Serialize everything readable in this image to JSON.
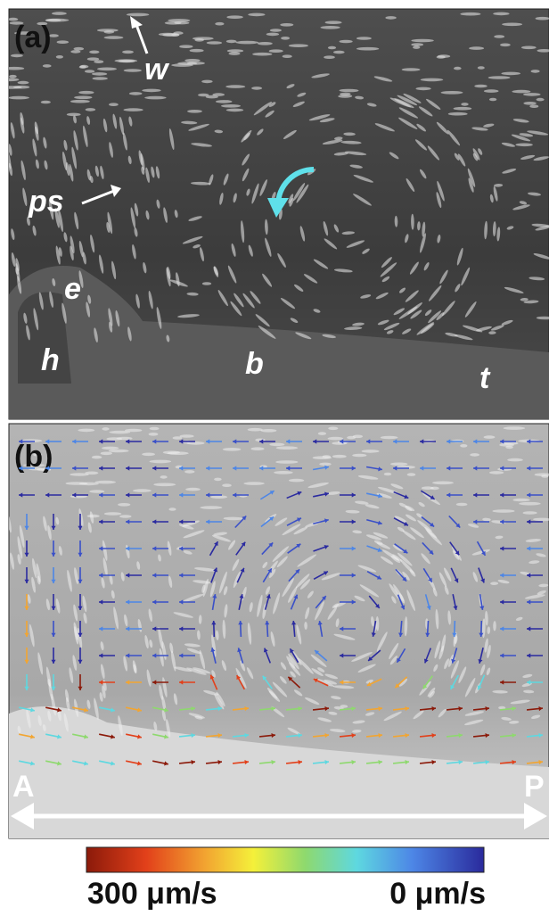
{
  "panel_a": {
    "label": "(a)",
    "annotations": {
      "w": "w",
      "ps": "ps",
      "e": "e",
      "h": "h",
      "b": "b",
      "t": "t"
    }
  },
  "panel_b": {
    "label": "(b)",
    "left_end": "A",
    "right_end": "P"
  },
  "colorbar": {
    "left_label": "300 μm/s",
    "right_label": "0 μm/s"
  }
}
